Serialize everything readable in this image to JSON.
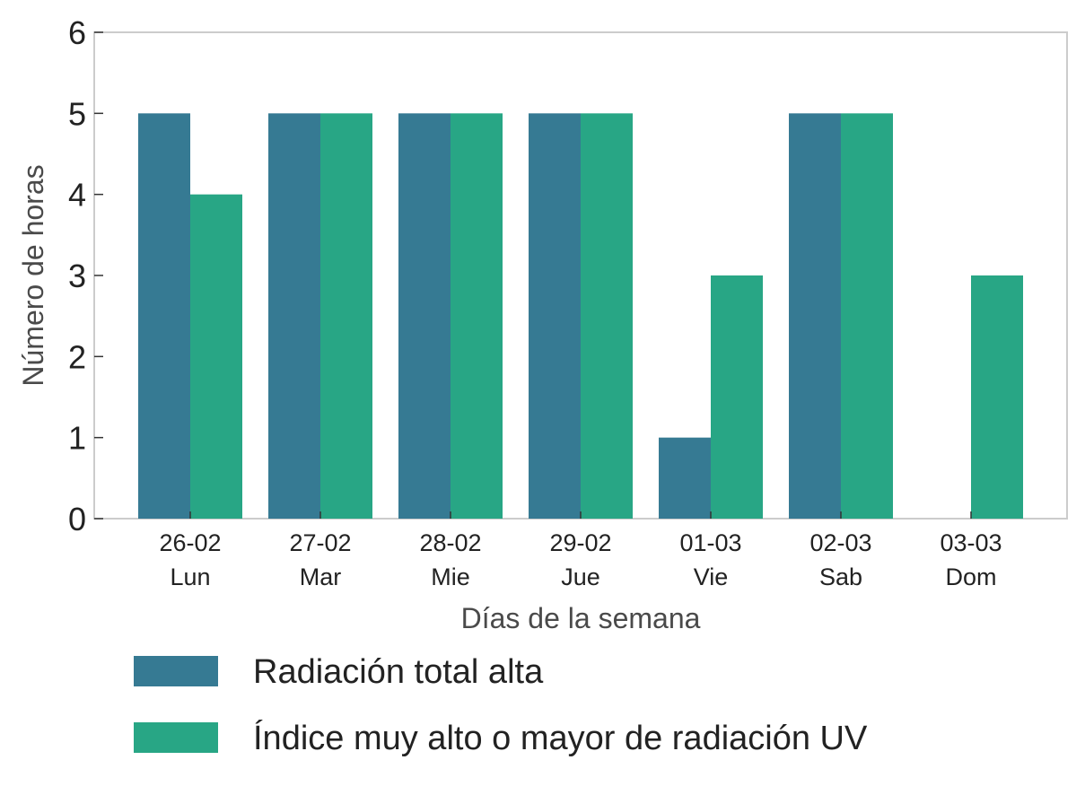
{
  "chart_data": {
    "type": "bar",
    "categories": [
      [
        "26-02",
        "Lun"
      ],
      [
        "27-02",
        "Mar"
      ],
      [
        "28-02",
        "Mie"
      ],
      [
        "29-02",
        "Jue"
      ],
      [
        "01-03",
        "Vie"
      ],
      [
        "02-03",
        "Sab"
      ],
      [
        "03-03",
        "Dom"
      ]
    ],
    "series": [
      {
        "name": "Radiación total alta",
        "color": "#367a93",
        "values": [
          5,
          5,
          5,
          5,
          1,
          5,
          0
        ]
      },
      {
        "name": "Índice muy alto o mayor de radiación UV",
        "color": "#28a685",
        "values": [
          4,
          5,
          5,
          5,
          3,
          5,
          3
        ]
      }
    ],
    "xlabel": "Días de la semana",
    "ylabel": "Número de horas",
    "ylim": [
      0,
      6
    ],
    "yticks": [
      0,
      1,
      2,
      3,
      4,
      5,
      6
    ],
    "grid": false,
    "legend": "bottom"
  }
}
